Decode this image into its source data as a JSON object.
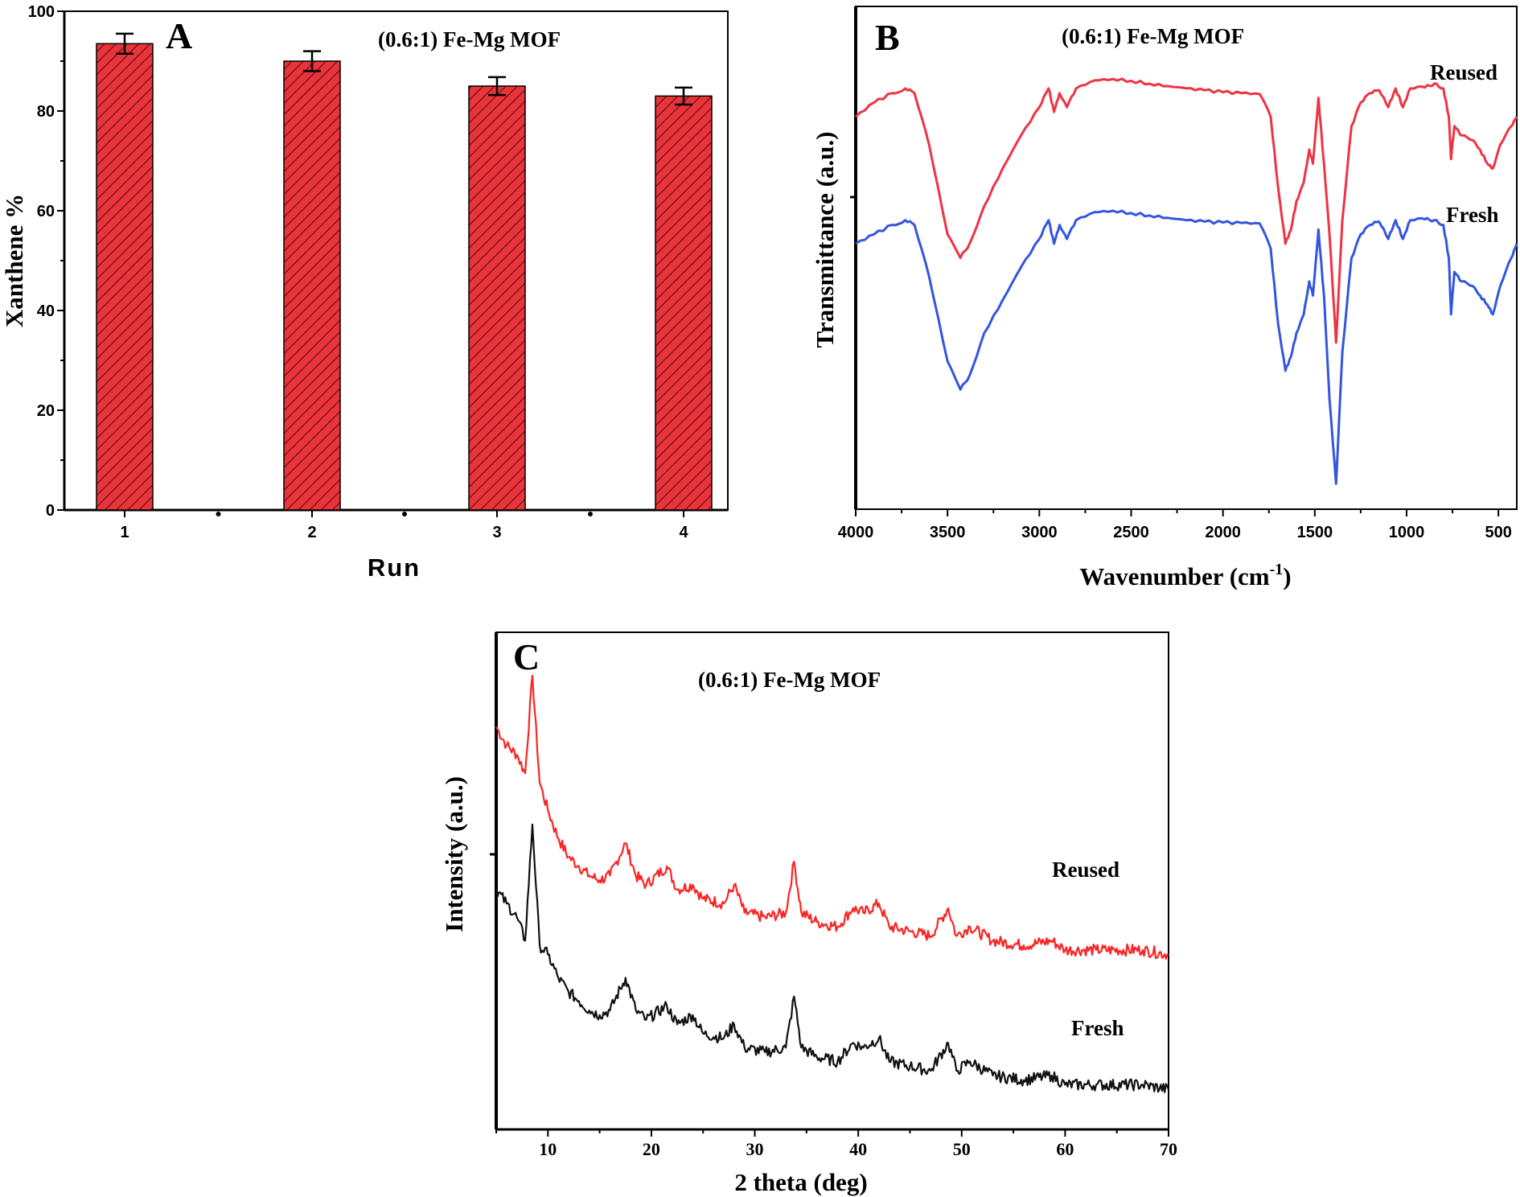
{
  "chart_data": [
    {
      "panel": "A",
      "type": "bar",
      "title": "(0.6:1) Fe-Mg MOF",
      "xlabel": "Run",
      "ylabel": "Xanthene %",
      "categories": [
        "1",
        "2",
        "3",
        "4"
      ],
      "values": [
        93.5,
        90,
        85,
        83
      ],
      "errors": [
        2,
        2,
        1.8,
        1.7
      ],
      "ylim": [
        0,
        100
      ],
      "yticks": [
        0,
        20,
        40,
        60,
        80,
        100
      ],
      "bar_color": "#e8343a",
      "hatch": "diagonal",
      "grid": false,
      "legend": "none"
    },
    {
      "panel": "B",
      "type": "line",
      "title": "(0.6:1) Fe-Mg MOF",
      "xlabel": "Wavenumber (cm",
      "xlabel_sup": "-1",
      "xlabel_end": ")",
      "ylabel": "Transmittance (a.u.)",
      "xlim": [
        4000,
        400
      ],
      "x_reversed": true,
      "xticks": [
        4000,
        3500,
        3000,
        2500,
        2000,
        1500,
        1000,
        500
      ],
      "grid": false,
      "legend": "inline labels",
      "series": [
        {
          "name": "Reused",
          "color": "#ee3344",
          "points": [
            [
              4000,
              0.8
            ],
            [
              3900,
              0.83
            ],
            [
              3800,
              0.85
            ],
            [
              3730,
              0.86
            ],
            [
              3680,
              0.85
            ],
            [
              3600,
              0.74
            ],
            [
              3500,
              0.55
            ],
            [
              3430,
              0.5
            ],
            [
              3380,
              0.53
            ],
            [
              3300,
              0.61
            ],
            [
              3200,
              0.69
            ],
            [
              3100,
              0.76
            ],
            [
              3000,
              0.82
            ],
            [
              2950,
              0.86
            ],
            [
              2920,
              0.81
            ],
            [
              2890,
              0.85
            ],
            [
              2850,
              0.82
            ],
            [
              2800,
              0.86
            ],
            [
              2700,
              0.877
            ],
            [
              2600,
              0.88
            ],
            [
              2500,
              0.876
            ],
            [
              2400,
              0.87
            ],
            [
              2300,
              0.865
            ],
            [
              2200,
              0.86
            ],
            [
              2100,
              0.856
            ],
            [
              2000,
              0.852
            ],
            [
              1900,
              0.85
            ],
            [
              1800,
              0.848
            ],
            [
              1740,
              0.8
            ],
            [
              1700,
              0.65
            ],
            [
              1660,
              0.53
            ],
            [
              1630,
              0.56
            ],
            [
              1600,
              0.62
            ],
            [
              1560,
              0.66
            ],
            [
              1530,
              0.73
            ],
            [
              1510,
              0.7
            ],
            [
              1480,
              0.84
            ],
            [
              1450,
              0.7
            ],
            [
              1420,
              0.55
            ],
            [
              1384,
              0.32
            ],
            [
              1350,
              0.58
            ],
            [
              1300,
              0.78
            ],
            [
              1250,
              0.83
            ],
            [
              1200,
              0.85
            ],
            [
              1150,
              0.856
            ],
            [
              1100,
              0.82
            ],
            [
              1060,
              0.86
            ],
            [
              1020,
              0.82
            ],
            [
              980,
              0.86
            ],
            [
              900,
              0.862
            ],
            [
              850,
              0.87
            ],
            [
              800,
              0.86
            ],
            [
              770,
              0.8
            ],
            [
              758,
              0.71
            ],
            [
              740,
              0.78
            ],
            [
              700,
              0.76
            ],
            [
              640,
              0.75
            ],
            [
              600,
              0.73
            ],
            [
              560,
              0.7
            ],
            [
              530,
              0.69
            ],
            [
              490,
              0.74
            ],
            [
              430,
              0.78
            ],
            [
              400,
              0.8
            ]
          ]
        },
        {
          "name": "Fresh",
          "color": "#3355e0",
          "points": [
            [
              4000,
              0.53
            ],
            [
              3900,
              0.55
            ],
            [
              3800,
              0.57
            ],
            [
              3730,
              0.58
            ],
            [
              3680,
              0.57
            ],
            [
              3600,
              0.46
            ],
            [
              3500,
              0.28
            ],
            [
              3430,
              0.22
            ],
            [
              3380,
              0.25
            ],
            [
              3300,
              0.34
            ],
            [
              3200,
              0.41
            ],
            [
              3100,
              0.48
            ],
            [
              3000,
              0.54
            ],
            [
              2950,
              0.58
            ],
            [
              2920,
              0.53
            ],
            [
              2890,
              0.57
            ],
            [
              2850,
              0.54
            ],
            [
              2800,
              0.58
            ],
            [
              2700,
              0.597
            ],
            [
              2600,
              0.6
            ],
            [
              2500,
              0.595
            ],
            [
              2400,
              0.59
            ],
            [
              2300,
              0.585
            ],
            [
              2200,
              0.58
            ],
            [
              2100,
              0.577
            ],
            [
              2000,
              0.575
            ],
            [
              1900,
              0.574
            ],
            [
              1800,
              0.573
            ],
            [
              1740,
              0.52
            ],
            [
              1700,
              0.36
            ],
            [
              1660,
              0.26
            ],
            [
              1630,
              0.29
            ],
            [
              1600,
              0.34
            ],
            [
              1560,
              0.38
            ],
            [
              1530,
              0.45
            ],
            [
              1510,
              0.42
            ],
            [
              1480,
              0.56
            ],
            [
              1450,
              0.42
            ],
            [
              1420,
              0.2
            ],
            [
              1384,
              0.02
            ],
            [
              1350,
              0.3
            ],
            [
              1300,
              0.5
            ],
            [
              1250,
              0.55
            ],
            [
              1200,
              0.57
            ],
            [
              1150,
              0.577
            ],
            [
              1100,
              0.54
            ],
            [
              1060,
              0.58
            ],
            [
              1020,
              0.54
            ],
            [
              980,
              0.58
            ],
            [
              900,
              0.582
            ],
            [
              850,
              0.58
            ],
            [
              800,
              0.57
            ],
            [
              770,
              0.5
            ],
            [
              758,
              0.38
            ],
            [
              740,
              0.47
            ],
            [
              700,
              0.45
            ],
            [
              640,
              0.44
            ],
            [
              600,
              0.42
            ],
            [
              560,
              0.4
            ],
            [
              530,
              0.38
            ],
            [
              490,
              0.44
            ],
            [
              430,
              0.5
            ],
            [
              400,
              0.53
            ]
          ]
        }
      ]
    },
    {
      "panel": "C",
      "type": "line",
      "title": "(0.6:1) Fe-Mg MOF",
      "xlabel": "2 theta (deg)",
      "ylabel": "Intensity (a.u.)",
      "xlim": [
        5,
        70
      ],
      "xticks": [
        10,
        20,
        30,
        40,
        50,
        60,
        70
      ],
      "grid": false,
      "legend": "inline labels",
      "series": [
        {
          "name": "Reused",
          "color": "#ff2222",
          "points": [
            [
              5,
              0.84
            ],
            [
              6,
              0.8
            ],
            [
              7,
              0.78
            ],
            [
              7.8,
              0.74
            ],
            [
              8.5,
              0.95
            ],
            [
              9.2,
              0.72
            ],
            [
              10,
              0.66
            ],
            [
              11,
              0.6
            ],
            [
              12,
              0.56
            ],
            [
              13,
              0.54
            ],
            [
              14,
              0.52
            ],
            [
              15,
              0.51
            ],
            [
              16,
              0.52
            ],
            [
              17.5,
              0.59
            ],
            [
              18.5,
              0.52
            ],
            [
              19.5,
              0.5
            ],
            [
              21.5,
              0.54
            ],
            [
              22.5,
              0.49
            ],
            [
              24,
              0.5
            ],
            [
              25,
              0.47
            ],
            [
              27,
              0.46
            ],
            [
              28,
              0.5
            ],
            [
              29,
              0.44
            ],
            [
              31,
              0.43
            ],
            [
              33,
              0.44
            ],
            [
              33.8,
              0.55
            ],
            [
              34.5,
              0.44
            ],
            [
              36,
              0.42
            ],
            [
              38,
              0.41
            ],
            [
              39.5,
              0.45
            ],
            [
              40.5,
              0.44
            ],
            [
              42,
              0.46
            ],
            [
              43,
              0.41
            ],
            [
              45,
              0.4
            ],
            [
              47,
              0.39
            ],
            [
              48.7,
              0.45
            ],
            [
              49.5,
              0.39
            ],
            [
              50.8,
              0.41
            ],
            [
              53,
              0.38
            ],
            [
              56,
              0.37
            ],
            [
              58.7,
              0.38
            ],
            [
              60,
              0.36
            ],
            [
              63,
              0.36
            ],
            [
              67.5,
              0.36
            ],
            [
              70,
              0.35
            ]
          ]
        },
        {
          "name": "Fresh",
          "color": "#111111",
          "points": [
            [
              5,
              0.49
            ],
            [
              6,
              0.46
            ],
            [
              7,
              0.43
            ],
            [
              7.8,
              0.38
            ],
            [
              8.5,
              0.63
            ],
            [
              9.2,
              0.37
            ],
            [
              10,
              0.35
            ],
            [
              11,
              0.3
            ],
            [
              12,
              0.27
            ],
            [
              13,
              0.25
            ],
            [
              14,
              0.23
            ],
            [
              15,
              0.22
            ],
            [
              16,
              0.23
            ],
            [
              17.5,
              0.3
            ],
            [
              18.5,
              0.23
            ],
            [
              19.5,
              0.21
            ],
            [
              21.5,
              0.24
            ],
            [
              22.5,
              0.2
            ],
            [
              24,
              0.22
            ],
            [
              25,
              0.18
            ],
            [
              27,
              0.17
            ],
            [
              28,
              0.2
            ],
            [
              29,
              0.15
            ],
            [
              31,
              0.14
            ],
            [
              33,
              0.15
            ],
            [
              33.8,
              0.26
            ],
            [
              34.5,
              0.15
            ],
            [
              36,
              0.13
            ],
            [
              38,
              0.12
            ],
            [
              39.5,
              0.16
            ],
            [
              40.5,
              0.15
            ],
            [
              42,
              0.17
            ],
            [
              43,
              0.12
            ],
            [
              45,
              0.11
            ],
            [
              47,
              0.1
            ],
            [
              48.7,
              0.16
            ],
            [
              49.5,
              0.1
            ],
            [
              50.8,
              0.12
            ],
            [
              53,
              0.09
            ],
            [
              56,
              0.08
            ],
            [
              58.7,
              0.09
            ],
            [
              60,
              0.07
            ],
            [
              63,
              0.07
            ],
            [
              67.5,
              0.07
            ],
            [
              70,
              0.06
            ]
          ]
        }
      ]
    }
  ]
}
